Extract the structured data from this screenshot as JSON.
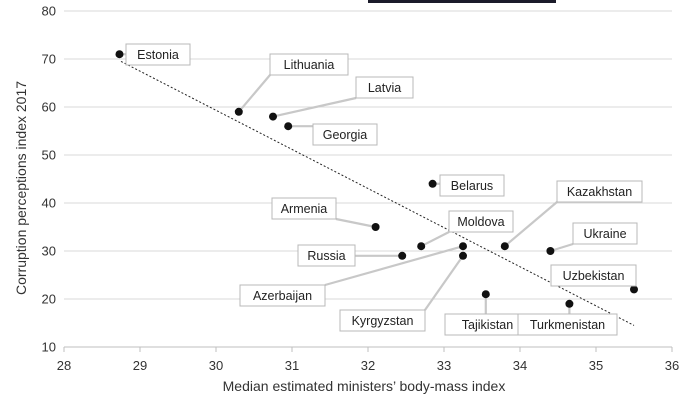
{
  "chart_data": {
    "type": "scatter",
    "xlabel": "Median estimated ministers’ body-mass index",
    "ylabel": "Corruption perceptions index 2017",
    "xlim": [
      28,
      36
    ],
    "ylim": [
      10,
      80
    ],
    "x_ticks": [
      28,
      29,
      30,
      31,
      32,
      33,
      34,
      35,
      36
    ],
    "y_ticks": [
      10,
      20,
      30,
      40,
      50,
      60,
      70,
      80
    ],
    "grid": "horizontal",
    "trendline": {
      "style": "dotted",
      "from": [
        28.75,
        69.5
      ],
      "to": [
        35.5,
        14.5
      ]
    },
    "points": [
      {
        "label": "Estonia",
        "x": 28.73,
        "y": 71
      },
      {
        "label": "Lithuania",
        "x": 30.3,
        "y": 59
      },
      {
        "label": "Latvia",
        "x": 30.75,
        "y": 58
      },
      {
        "label": "Georgia",
        "x": 30.95,
        "y": 56
      },
      {
        "label": "Belarus",
        "x": 32.85,
        "y": 44
      },
      {
        "label": "Armenia",
        "x": 32.1,
        "y": 35
      },
      {
        "label": "Moldova",
        "x": 32.7,
        "y": 31
      },
      {
        "label": "Russia",
        "x": 32.45,
        "y": 29
      },
      {
        "label": "Azerbaijan",
        "x": 33.25,
        "y": 31
      },
      {
        "label": "Kyrgyzstan",
        "x": 33.25,
        "y": 29
      },
      {
        "label": "Kazakhstan",
        "x": 33.8,
        "y": 31
      },
      {
        "label": "Ukraine",
        "x": 34.4,
        "y": 30
      },
      {
        "label": "Tajikistan",
        "x": 33.55,
        "y": 21
      },
      {
        "label": "Uzbekistan",
        "x": 35.5,
        "y": 22
      },
      {
        "label": "Turkmenistan",
        "x": 34.65,
        "y": 19
      }
    ]
  }
}
